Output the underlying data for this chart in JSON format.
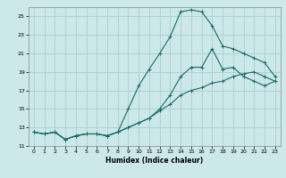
{
  "xlabel": "Humidex (Indice chaleur)",
  "background_color": "#cce8e8",
  "grid_color": "#aacfcf",
  "line_color": "#1a6b6b",
  "xlim": [
    -0.5,
    23.5
  ],
  "ylim": [
    11,
    26
  ],
  "yticks": [
    11,
    13,
    15,
    17,
    19,
    21,
    23,
    25
  ],
  "xticks": [
    0,
    1,
    2,
    3,
    4,
    5,
    6,
    7,
    8,
    9,
    10,
    11,
    12,
    13,
    14,
    15,
    16,
    17,
    18,
    19,
    20,
    21,
    22,
    23
  ],
  "line1_x": [
    0,
    1,
    2,
    3,
    4,
    5,
    6,
    7,
    8,
    9,
    10,
    11,
    12,
    13,
    14,
    15,
    16,
    17,
    18,
    19,
    20,
    21,
    22,
    23
  ],
  "line1_y": [
    12.5,
    12.3,
    12.5,
    11.7,
    12.1,
    12.3,
    12.3,
    12.1,
    12.5,
    13.0,
    13.5,
    14.0,
    15.0,
    16.5,
    18.5,
    19.5,
    19.5,
    21.5,
    19.3,
    19.5,
    18.5,
    18.0,
    17.5,
    18.0
  ],
  "line2_x": [
    0,
    1,
    2,
    3,
    4,
    5,
    6,
    7,
    8,
    9,
    10,
    11,
    12,
    13,
    14,
    15,
    16,
    17,
    18,
    19,
    20,
    21,
    22,
    23
  ],
  "line2_y": [
    12.5,
    12.3,
    12.5,
    11.7,
    12.1,
    12.3,
    12.3,
    12.1,
    12.5,
    15.0,
    17.5,
    19.3,
    21.0,
    22.8,
    25.5,
    25.7,
    25.5,
    24.0,
    21.8,
    21.5,
    21.0,
    20.5,
    20.0,
    18.5
  ],
  "line3_x": [
    0,
    1,
    2,
    3,
    4,
    5,
    6,
    7,
    8,
    9,
    10,
    11,
    12,
    13,
    14,
    15,
    16,
    17,
    18,
    19,
    20,
    21,
    22,
    23
  ],
  "line3_y": [
    12.5,
    12.3,
    12.5,
    11.7,
    12.1,
    12.3,
    12.3,
    12.1,
    12.5,
    13.0,
    13.5,
    14.0,
    14.8,
    15.5,
    16.5,
    17.0,
    17.3,
    17.8,
    18.0,
    18.5,
    18.8,
    19.0,
    18.5,
    18.0
  ]
}
